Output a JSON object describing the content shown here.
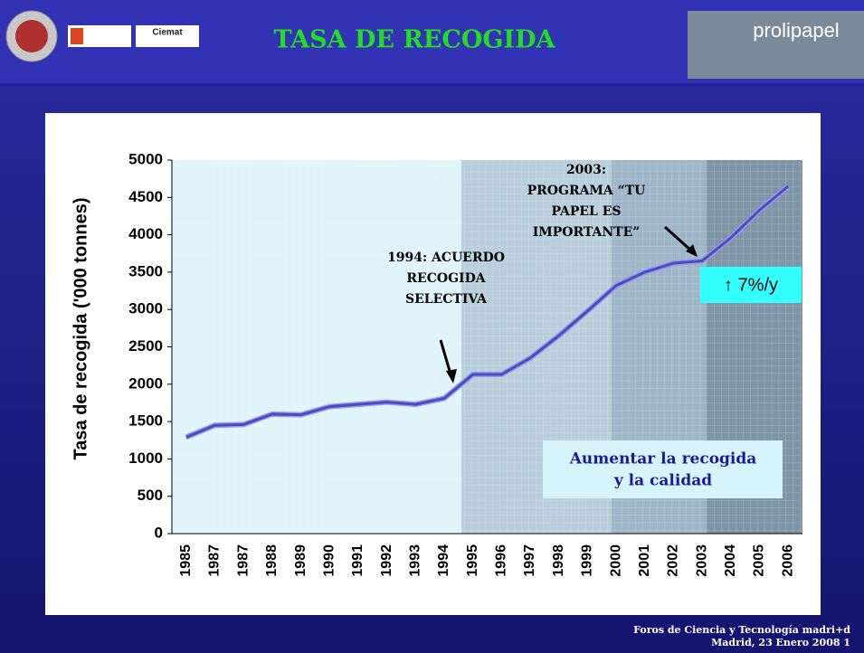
{
  "header": {
    "title": "TASA DE RECOGIDA",
    "logo_left": "Ciemat",
    "logo_right": "prolipapel"
  },
  "chart_data": {
    "type": "line",
    "ylabel": "Tasa de recogida ('000 tonnes)",
    "categories": [
      "1985",
      "1987",
      "1987",
      "1988",
      "1989",
      "1990",
      "1991",
      "1992",
      "1993",
      "1994",
      "1995",
      "1996",
      "1997",
      "1998",
      "1999",
      "2000",
      "2001",
      "2002",
      "2003",
      "2004",
      "2005",
      "2006"
    ],
    "series": [
      {
        "name": "Tasa de recogida",
        "color": "#4b4bc8",
        "values": [
          1290,
          1450,
          1460,
          1600,
          1590,
          1700,
          1730,
          1760,
          1730,
          1810,
          2130,
          2130,
          2350,
          2650,
          2980,
          3320,
          3500,
          3620,
          3650,
          3960,
          4330,
          4650
        ]
      }
    ],
    "ylim": [
      0,
      5000
    ],
    "yticks": [
      0,
      500,
      1000,
      1500,
      2000,
      2500,
      3000,
      3500,
      4000,
      4500,
      5000
    ],
    "grid": true,
    "annotations": [
      {
        "lines": [
          "1994: ACUERDO",
          "RECOGIDA",
          "SELECTIVA"
        ]
      },
      {
        "lines": [
          "2003:",
          "PROGRAMA “TU",
          "PAPEL ES",
          "IMPORTANTE”"
        ]
      },
      {
        "lines": [
          "↑ 7%/y"
        ]
      },
      {
        "lines": [
          "Aumentar la recogida",
          "y la calidad"
        ]
      }
    ]
  },
  "footer": {
    "lines": [
      "Foros de Ciencia y Tecnología madri+d",
      "Madrid, 23 Enero 2008 1"
    ]
  }
}
